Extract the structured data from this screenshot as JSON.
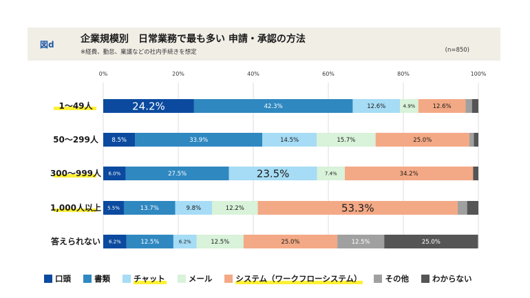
{
  "header": {
    "fig_label": "図d",
    "title": "企業規模別　日常業務で最も多い 申請・承認の方法",
    "subtitle": "※経費、勤怠、稟議などの社内手続きを想定",
    "n": "(n=850)"
  },
  "colors": {
    "口頭": "#0b4a9f",
    "書類": "#2f88c0",
    "チャット": "#a6dcf5",
    "メール": "#d9f2da",
    "システム": "#f3a985",
    "その他": "#a0a0a0",
    "わからない": "#555555",
    "highlight": "#fff034",
    "header_bg": "#f1eee6"
  },
  "chart_data": {
    "type": "bar",
    "orientation": "horizontal",
    "stacked": true,
    "categories": [
      "1～49人",
      "50～299人",
      "300～999人",
      "1,000人以上",
      "答えられない"
    ],
    "highlighted_categories": [
      "1～49人",
      "300～999人",
      "1,000人以上"
    ],
    "xlim": [
      0,
      100
    ],
    "x_ticks": [
      "0%",
      "20%",
      "40%",
      "60%",
      "80%",
      "100%"
    ],
    "grid": true,
    "legend_position": "bottom",
    "series": [
      {
        "name": "口頭",
        "values": [
          24.2,
          8.5,
          6.0,
          5.5,
          6.2
        ],
        "labels": [
          "24.2%",
          "8.5%",
          "6.0%",
          "5.5%",
          "6.2%"
        ]
      },
      {
        "name": "書類",
        "values": [
          42.3,
          33.9,
          27.5,
          13.7,
          12.5
        ],
        "labels": [
          "42.3%",
          "33.9%",
          "27.5%",
          "13.7%",
          "12.5%"
        ]
      },
      {
        "name": "チャット",
        "values": [
          12.6,
          14.5,
          23.5,
          9.8,
          6.2
        ],
        "labels": [
          "12.6%",
          "14.5%",
          "23.5%",
          "9.8%",
          "6.2%"
        ]
      },
      {
        "name": "メール",
        "values": [
          4.9,
          15.7,
          7.4,
          12.2,
          12.5
        ],
        "labels": [
          "4.9%",
          "15.7%",
          "7.4%",
          "12.2%",
          "12.5%"
        ]
      },
      {
        "name": "システム（ワークフローシステム）",
        "values": [
          12.6,
          25.0,
          34.2,
          53.3,
          25.0
        ],
        "labels": [
          "12.6%",
          "25.0%",
          "34.2%",
          "53.3%",
          "25.0%"
        ]
      },
      {
        "name": "その他",
        "values": [
          1.7,
          1.2,
          0.0,
          2.5,
          12.5
        ],
        "labels": [
          "",
          "",
          "",
          "",
          "12.5%"
        ]
      },
      {
        "name": "わからない",
        "values": [
          1.7,
          1.2,
          1.4,
          3.0,
          25.0
        ],
        "labels": [
          "",
          "",
          "",
          "",
          "25.0%"
        ]
      }
    ],
    "emphasized_labels": [
      [
        0,
        0
      ],
      [
        2,
        2
      ],
      [
        3,
        4
      ]
    ]
  },
  "legend": [
    {
      "label": "口頭",
      "color_key": "口頭",
      "highlight": false
    },
    {
      "label": "書類",
      "color_key": "書類",
      "highlight": false
    },
    {
      "label": "チャット",
      "color_key": "チャット",
      "highlight": true
    },
    {
      "label": "メール",
      "color_key": "メール",
      "highlight": false
    },
    {
      "label": "システム（ワークフローシステム）",
      "color_key": "システム",
      "highlight": true
    },
    {
      "label": "その他",
      "color_key": "その他",
      "highlight": false
    },
    {
      "label": "わからない",
      "color_key": "わからない",
      "highlight": false
    }
  ]
}
